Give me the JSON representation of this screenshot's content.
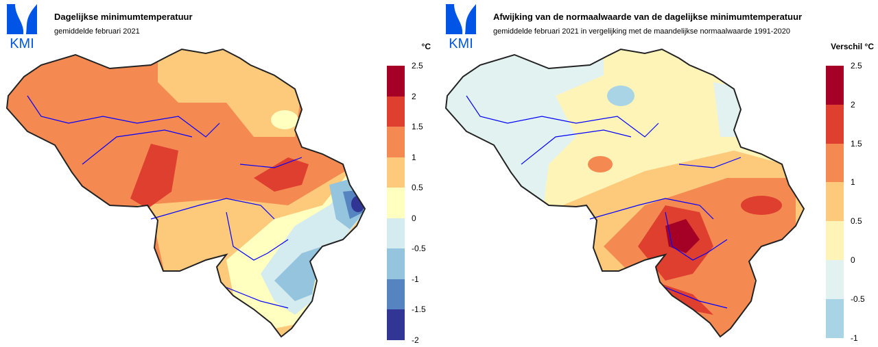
{
  "logo_text": "KMI",
  "left_map": {
    "title": "Dagelijkse minimumtemperatuur",
    "subtitle": "gemiddelde februari 2021",
    "unit": "°C",
    "legend": {
      "labels": [
        "2.5",
        "2",
        "1.5",
        "1",
        "0.5",
        "0",
        "-0.5",
        "-1",
        "-1.5",
        "-2"
      ],
      "colors": [
        "#a50026",
        "#de3f2e",
        "#f48a52",
        "#fdca7b",
        "#ffffc0",
        "#d4ebf0",
        "#95c4de",
        "#5584c0",
        "#313695"
      ]
    }
  },
  "right_map": {
    "title": "Afwijking van de normaalwaarde van de dagelijkse minimumtemperatuur",
    "subtitle": "gemiddelde februari 2021 in vergelijking met de maandelijkse normaalwaarde 1991-2020",
    "unit": "Verschil °C",
    "legend": {
      "labels": [
        "2.5",
        "2",
        "1.5",
        "1",
        "0.5",
        "0",
        "-0.5",
        "-1"
      ],
      "colors": [
        "#a50026",
        "#de3f2e",
        "#f48a52",
        "#fdca7b",
        "#fff4b8",
        "#e2f2f0",
        "#a8d4e6"
      ]
    }
  },
  "colors": {
    "logo": "#0055e6",
    "river": "#0000ff",
    "border": "#a0a0a0",
    "outline": "#222222"
  }
}
